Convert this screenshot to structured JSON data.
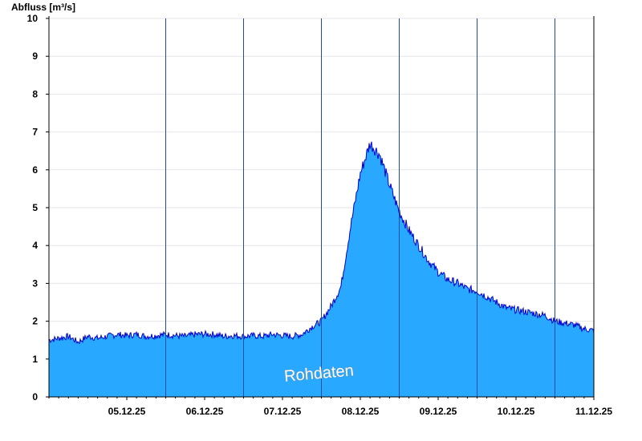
{
  "chart_data": {
    "type": "area",
    "ylabel": "Abfluss [m³/s]",
    "ylim": [
      0,
      10
    ],
    "yticks": [
      "0",
      "1",
      "2",
      "3",
      "4",
      "5",
      "6",
      "7",
      "8",
      "9",
      "10"
    ],
    "xlim": [
      "2025-12-04T12:00",
      "2025-12-11T12:00"
    ],
    "xticks": [
      "05.12.25",
      "06.12.25",
      "07.12.25",
      "08.12.25",
      "09.12.25",
      "10.12.25",
      "11.12.25"
    ],
    "grid": true,
    "watermark": "Rohdaten",
    "fill_color": "#29a8ff",
    "line_color": "#0000cc",
    "series": [
      {
        "x": [
          "2025-12-04T12:00",
          "2025-12-04T15:00",
          "2025-12-04T18:00",
          "2025-12-04T21:00",
          "2025-12-05T00:00",
          "2025-12-05T03:00",
          "2025-12-05T06:00",
          "2025-12-05T09:00",
          "2025-12-05T12:00",
          "2025-12-05T15:00",
          "2025-12-05T18:00",
          "2025-12-05T21:00",
          "2025-12-06T00:00",
          "2025-12-06T03:00",
          "2025-12-06T06:00",
          "2025-12-06T09:00",
          "2025-12-06T12:00",
          "2025-12-06T15:00",
          "2025-12-06T18:00",
          "2025-12-06T21:00",
          "2025-12-07T00:00",
          "2025-12-07T03:00",
          "2025-12-07T06:00",
          "2025-12-07T09:00",
          "2025-12-07T12:00",
          "2025-12-07T15:00",
          "2025-12-07T18:00",
          "2025-12-07T21:00",
          "2025-12-08T00:00",
          "2025-12-08T03:00",
          "2025-12-08T06:00",
          "2025-12-08T09:00",
          "2025-12-08T12:00",
          "2025-12-08T15:00",
          "2025-12-08T18:00",
          "2025-12-08T21:00",
          "2025-12-09T00:00",
          "2025-12-09T03:00",
          "2025-12-09T06:00",
          "2025-12-09T09:00",
          "2025-12-09T12:00",
          "2025-12-09T15:00",
          "2025-12-09T18:00",
          "2025-12-09T21:00",
          "2025-12-10T00:00",
          "2025-12-10T03:00",
          "2025-12-10T06:00",
          "2025-12-10T09:00",
          "2025-12-10T12:00",
          "2025-12-10T15:00",
          "2025-12-10T18:00",
          "2025-12-10T21:00",
          "2025-12-11T00:00",
          "2025-12-11T03:00",
          "2025-12-11T06:00",
          "2025-12-11T09:00",
          "2025-12-11T12:00"
        ],
        "values": [
          1.5,
          1.55,
          1.6,
          1.45,
          1.6,
          1.55,
          1.6,
          1.65,
          1.62,
          1.65,
          1.6,
          1.62,
          1.65,
          1.62,
          1.6,
          1.65,
          1.66,
          1.65,
          1.6,
          1.62,
          1.6,
          1.62,
          1.6,
          1.65,
          1.62,
          1.6,
          1.65,
          1.85,
          2.0,
          2.4,
          2.9,
          4.5,
          5.9,
          6.7,
          6.4,
          5.6,
          4.9,
          4.4,
          4.0,
          3.6,
          3.3,
          3.1,
          3.0,
          2.85,
          2.8,
          2.65,
          2.5,
          2.35,
          2.3,
          2.25,
          2.2,
          2.15,
          2.0,
          1.95,
          1.9,
          1.8,
          1.75
        ]
      }
    ]
  }
}
